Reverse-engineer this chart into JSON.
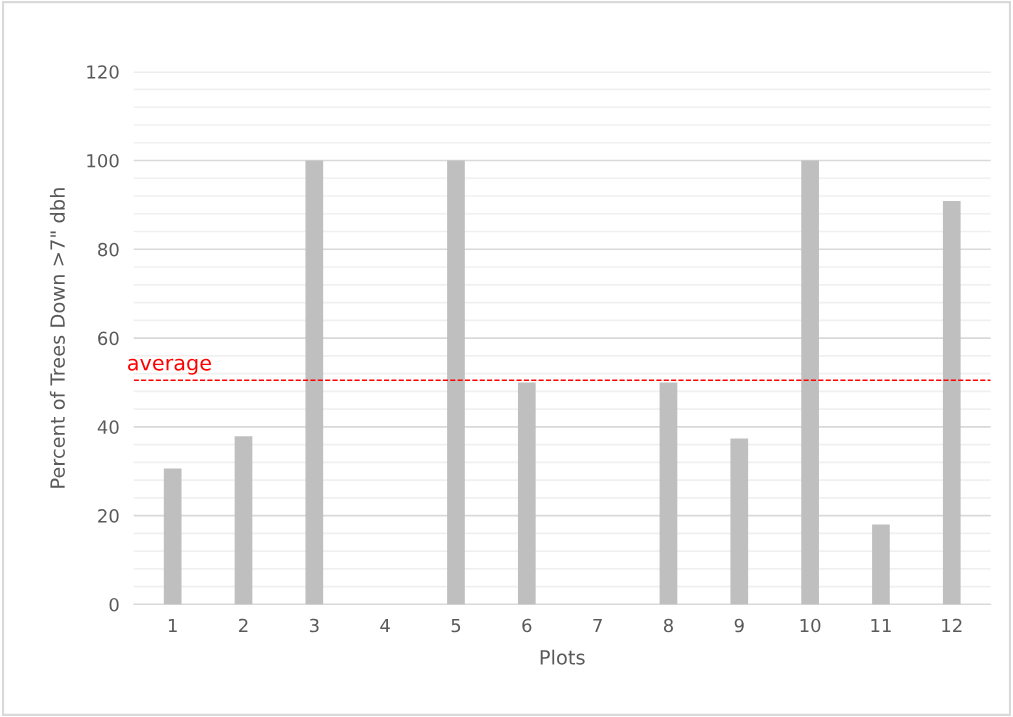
{
  "chart_data": {
    "type": "bar",
    "xlabel": "Plots",
    "ylabel": "Percent of Trees Down >7\" dbh",
    "categories": [
      "1",
      "2",
      "3",
      "4",
      "5",
      "6",
      "7",
      "8",
      "9",
      "10",
      "11",
      "12"
    ],
    "values": [
      30.6,
      37.9,
      100,
      0,
      100,
      50,
      0,
      50,
      37.4,
      100,
      18,
      90.9
    ],
    "color": "#bfbfbf",
    "ylim": [
      0,
      120
    ],
    "yticks": [
      0,
      {
        "value": 4,
        "label": null
      },
      {
        "value": 8,
        "label": null
      },
      {
        "value": 12,
        "label": null
      },
      {
        "value": 16,
        "label": null
      },
      20,
      {
        "value": 24,
        "label": null
      },
      {
        "value": 28,
        "label": null
      },
      {
        "value": 32,
        "label": null
      },
      {
        "value": 36,
        "label": null
      },
      40,
      {
        "value": 44,
        "label": null
      },
      {
        "value": 48,
        "label": null
      },
      {
        "value": 52,
        "label": null
      },
      {
        "value": 56,
        "label": null
      },
      60,
      {
        "value": 64,
        "label": null
      },
      {
        "value": 68,
        "label": null
      },
      {
        "value": 72,
        "label": null
      },
      {
        "value": 76,
        "label": null
      },
      80,
      {
        "value": 84,
        "label": null
      },
      {
        "value": 88,
        "label": null
      },
      {
        "value": 92,
        "label": null
      },
      {
        "value": 96,
        "label": null
      },
      100,
      {
        "value": 104,
        "label": null
      },
      {
        "value": 108,
        "label": null
      },
      {
        "value": 112,
        "label": null
      },
      {
        "value": 116,
        "label": null
      },
      120
    ],
    "grid": "y",
    "ref_lines": [
      {
        "axis": "y",
        "value": 50.5,
        "label": "average",
        "color": "#ff0000",
        "line_style": "dashed"
      }
    ]
  }
}
